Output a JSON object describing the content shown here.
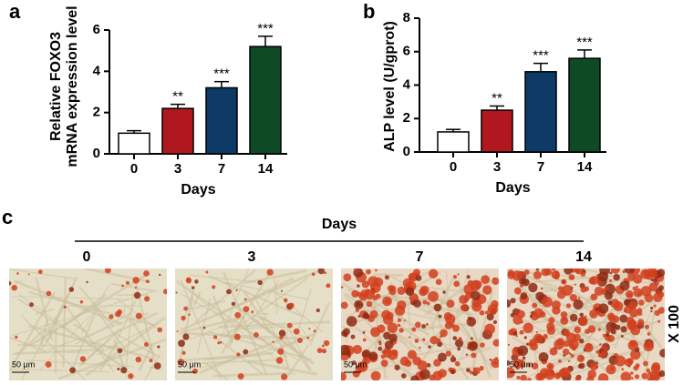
{
  "chart_data": [
    {
      "type": "bar",
      "panel": "a",
      "ylabel": [
        "Relative FOXO3",
        "mRNA expression  level"
      ],
      "xlabel": "Days",
      "categories": [
        "0",
        "3",
        "7",
        "14"
      ],
      "values": [
        1.0,
        2.2,
        3.2,
        5.2
      ],
      "errors": [
        0.12,
        0.2,
        0.3,
        0.5
      ],
      "annotations": [
        null,
        "**",
        "***",
        "***"
      ],
      "colors": [
        "#ffffff",
        "#b0171f",
        "#0d3a66",
        "#0e4a24"
      ],
      "ylim": [
        0,
        6
      ],
      "yticks": [
        0,
        2,
        4,
        6
      ]
    },
    {
      "type": "bar",
      "panel": "b",
      "ylabel": [
        "ALP level (U/gprot)"
      ],
      "xlabel": "Days",
      "categories": [
        "0",
        "3",
        "7",
        "14"
      ],
      "values": [
        1.2,
        2.5,
        4.8,
        5.6
      ],
      "errors": [
        0.15,
        0.25,
        0.5,
        0.5
      ],
      "annotations": [
        null,
        "**",
        "***",
        "***"
      ],
      "colors": [
        "#ffffff",
        "#b0171f",
        "#0d3a66",
        "#0e4a24"
      ],
      "ylim": [
        0,
        8
      ],
      "yticks": [
        0,
        2,
        4,
        6,
        8
      ]
    }
  ],
  "panel_c": {
    "label": "c",
    "title": "Days",
    "magnification": "X 100",
    "images": [
      {
        "label": "0",
        "scale": "50 μm"
      },
      {
        "label": "3",
        "scale": "50 μm"
      },
      {
        "label": "7",
        "scale": "50 μm"
      },
      {
        "label": "14",
        "scale": "50 μm"
      }
    ]
  }
}
